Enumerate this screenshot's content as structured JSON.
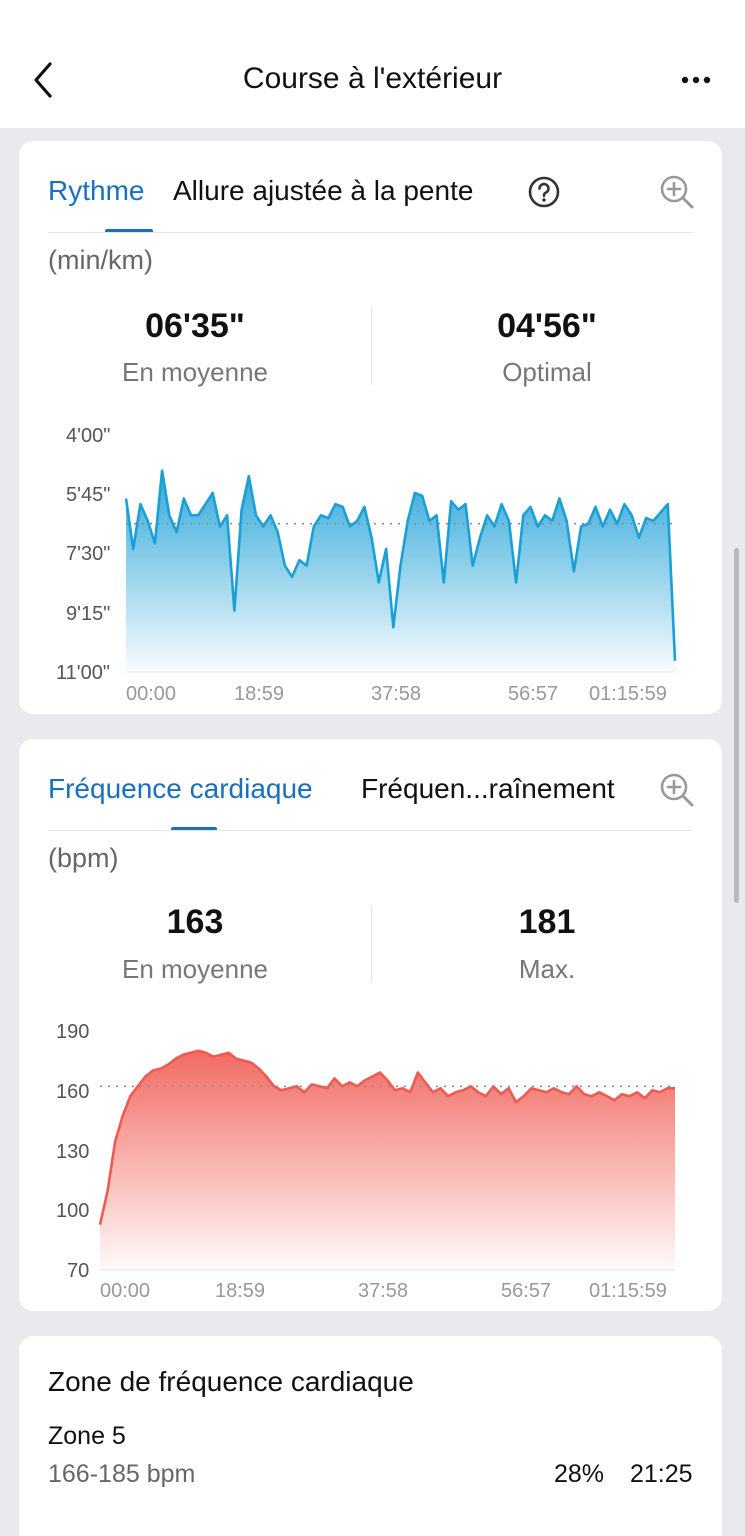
{
  "header": {
    "title": "Course à l'extérieur",
    "back_icon": "chevron-left-icon",
    "more_icon": "more-horizontal-icon"
  },
  "pace_card": {
    "tabs": [
      {
        "label": "Rythme",
        "active": true
      },
      {
        "label": "Allure ajustée à la pente",
        "active": false
      }
    ],
    "help_icon": "help-circle-icon",
    "zoom_icon": "zoom-in-icon",
    "unit": "(min/km)",
    "stats": [
      {
        "value": "06'35\"",
        "label": "En moyenne"
      },
      {
        "value": "04'56\"",
        "label": "Optimal"
      }
    ],
    "color": "#1a9fd6",
    "chart_data": {
      "type": "area",
      "y_ticks": [
        "4'00\"",
        "5'45\"",
        "7'30\"",
        "9'15\"",
        "11'00\""
      ],
      "x_ticks": [
        "00:00",
        "18:59",
        "37:58",
        "56:57",
        "01:15:59"
      ],
      "y_inverted": true,
      "ylim_sec_per_km": [
        240,
        660
      ],
      "xlim_min": [
        0,
        76
      ],
      "average_line_sec_per_km": 395,
      "x": [
        0,
        1,
        2,
        3,
        4,
        5,
        6,
        7,
        8,
        9,
        10,
        11,
        12,
        13,
        14,
        15,
        16,
        17,
        18,
        19,
        20,
        21,
        22,
        23,
        24,
        25,
        26,
        27,
        28,
        29,
        30,
        31,
        32,
        33,
        34,
        35,
        36,
        37,
        38,
        39,
        40,
        41,
        42,
        43,
        44,
        45,
        46,
        47,
        48,
        49,
        50,
        51,
        52,
        53,
        54,
        55,
        56,
        57,
        58,
        59,
        60,
        61,
        62,
        63,
        64,
        65,
        66,
        67,
        68,
        69,
        70,
        71,
        72,
        73,
        74,
        75,
        76
      ],
      "values": [
        350,
        440,
        360,
        390,
        430,
        300,
        380,
        410,
        350,
        380,
        380,
        360,
        340,
        400,
        380,
        550,
        370,
        310,
        380,
        400,
        380,
        410,
        470,
        490,
        460,
        470,
        400,
        380,
        385,
        360,
        365,
        400,
        390,
        365,
        420,
        500,
        440,
        580,
        470,
        390,
        340,
        345,
        390,
        380,
        500,
        355,
        370,
        360,
        470,
        420,
        380,
        400,
        360,
        390,
        500,
        380,
        365,
        400,
        380,
        390,
        350,
        390,
        480,
        400,
        395,
        365,
        400,
        370,
        395,
        360,
        380,
        420,
        385,
        390,
        375,
        360,
        640
      ]
    }
  },
  "hr_card": {
    "tabs": [
      {
        "label": "Fréquence cardiaque",
        "active": true
      },
      {
        "label": "Fréquen...raînement",
        "active": false
      }
    ],
    "zoom_icon": "zoom-in-icon",
    "unit": "(bpm)",
    "stats": [
      {
        "value": "163",
        "label": "En moyenne"
      },
      {
        "value": "181",
        "label": "Max."
      }
    ],
    "color": "#f05a50",
    "chart_data": {
      "type": "area",
      "y_ticks": [
        "190",
        "160",
        "130",
        "100",
        "70"
      ],
      "x_ticks": [
        "00:00",
        "18:59",
        "37:58",
        "56:57",
        "01:15:59"
      ],
      "ylim": [
        70,
        190
      ],
      "xlim_min": [
        0,
        76
      ],
      "average_line": 163,
      "x": [
        0,
        1,
        2,
        3,
        4,
        5,
        6,
        7,
        8,
        9,
        10,
        11,
        12,
        13,
        14,
        15,
        16,
        17,
        18,
        19,
        20,
        21,
        22,
        23,
        24,
        25,
        26,
        27,
        28,
        29,
        30,
        31,
        32,
        33,
        34,
        35,
        36,
        37,
        38,
        39,
        40,
        41,
        42,
        43,
        44,
        45,
        46,
        47,
        48,
        49,
        50,
        51,
        52,
        53,
        54,
        55,
        56,
        57,
        58,
        59,
        60,
        61,
        62,
        63,
        64,
        65,
        66,
        67,
        68,
        69,
        70,
        71,
        72,
        73,
        74,
        75,
        76
      ],
      "values": [
        93,
        110,
        135,
        148,
        158,
        163,
        168,
        171,
        172,
        174,
        177,
        179,
        180,
        181,
        180,
        178,
        179,
        180,
        177,
        176,
        175,
        172,
        168,
        163,
        161,
        162,
        163,
        160,
        164,
        163,
        162,
        167,
        163,
        165,
        163,
        166,
        168,
        170,
        166,
        161,
        162,
        160,
        170,
        165,
        160,
        162,
        158,
        160,
        161,
        163,
        160,
        158,
        163,
        159,
        162,
        155,
        158,
        162,
        161,
        160,
        162,
        160,
        159,
        163,
        159,
        158,
        160,
        158,
        156,
        159,
        158,
        160,
        157,
        161,
        160,
        162,
        162
      ]
    }
  },
  "zone_card": {
    "title": "Zone de fréquence cardiaque",
    "zone_name": "Zone 5",
    "range": "166-185 bpm",
    "percent": "28%",
    "time": "21:25"
  }
}
